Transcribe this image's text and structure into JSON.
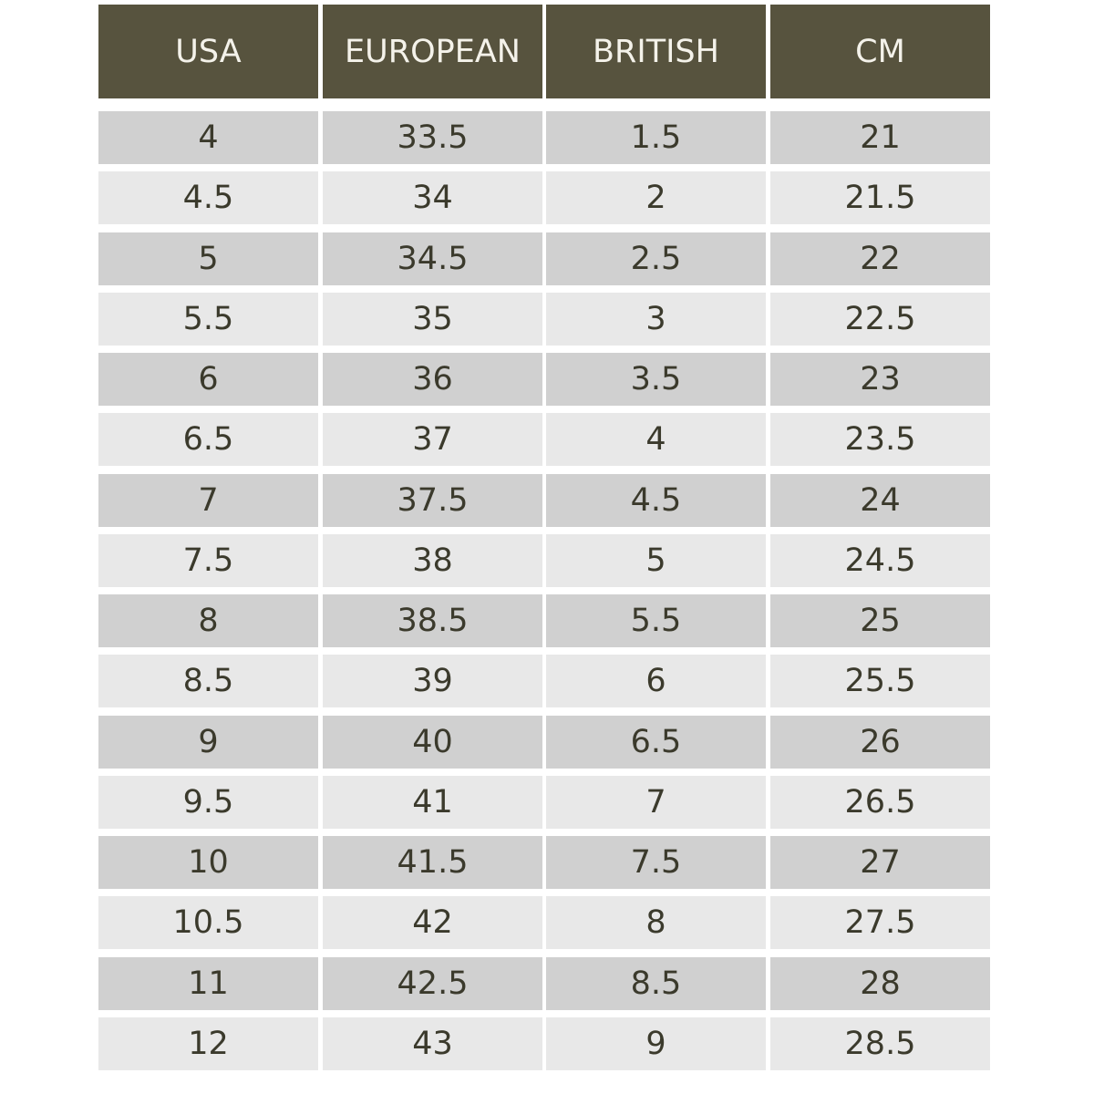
{
  "table": {
    "header": [
      "USA",
      "EUROPEAN",
      "BRITISH",
      "CM"
    ],
    "rows": [
      [
        "4",
        "33.5",
        "1.5",
        "21"
      ],
      [
        "4.5",
        "34",
        "2",
        "21.5"
      ],
      [
        "5",
        "34.5",
        "2.5",
        "22"
      ],
      [
        "5.5",
        "35",
        "3",
        "22.5"
      ],
      [
        "6",
        "36",
        "3.5",
        "23"
      ],
      [
        "6.5",
        "37",
        "4",
        "23.5"
      ],
      [
        "7",
        "37.5",
        "4.5",
        "24"
      ],
      [
        "7.5",
        "38",
        "5",
        "24.5"
      ],
      [
        "8",
        "38.5",
        "5.5",
        "25"
      ],
      [
        "8.5",
        "39",
        "6",
        "25.5"
      ],
      [
        "9",
        "40",
        "6.5",
        "26"
      ],
      [
        "9.5",
        "41",
        "7",
        "26.5"
      ],
      [
        "10",
        "41.5",
        "7.5",
        "27"
      ],
      [
        "10.5",
        "42",
        "8",
        "27.5"
      ],
      [
        "11",
        "42.5",
        "8.5",
        "28"
      ],
      [
        "12",
        "43",
        "9",
        "28.5"
      ]
    ]
  }
}
